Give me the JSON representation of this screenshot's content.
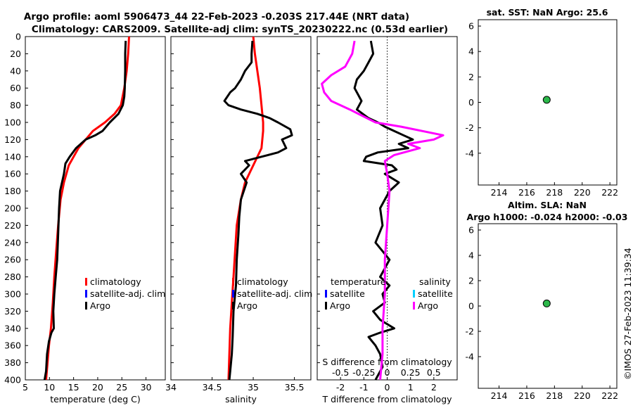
{
  "title": {
    "line1": "Argo profile: aoml 5906473_44 22-Feb-2023 -0.203S 217.44E (NRT data)",
    "line2": "Climatology: CARS2009. Satellite-adj clim: synTS_20230222.nc (0.53d earlier)"
  },
  "watermark": "©IMOS 27-Feb-2023 11:39:34",
  "chart_data": [
    {
      "id": "temperature",
      "type": "line",
      "xlabel": "temperature (deg C)",
      "xlim": [
        5,
        34
      ],
      "xticks": [
        5,
        10,
        15,
        20,
        25,
        30
      ],
      "ylim": [
        0,
        400
      ],
      "yticks": [
        0,
        20,
        40,
        60,
        80,
        100,
        120,
        140,
        160,
        180,
        200,
        220,
        240,
        260,
        280,
        300,
        320,
        340,
        360,
        380,
        400
      ],
      "yreversed": true,
      "legend": {
        "position": "lower-right",
        "entries": [
          "climatology",
          "satellite-adj. clim",
          "Argo"
        ]
      },
      "series": [
        {
          "name": "climatology",
          "color": "#ff0000",
          "x": [
            26.5,
            26.3,
            26.0,
            25.5,
            24.8,
            23.5,
            21.5,
            19.0,
            16.0,
            14.0,
            13.0,
            12.3,
            11.8,
            11.4,
            11.0,
            10.7,
            10.3,
            9.9,
            9.6,
            9.3
          ],
          "depth": [
            0,
            20,
            40,
            60,
            80,
            90,
            100,
            110,
            130,
            150,
            170,
            190,
            220,
            250,
            280,
            310,
            340,
            360,
            380,
            400
          ]
        },
        {
          "name": "Argo",
          "color": "#000000",
          "x": [
            25.8,
            25.7,
            25.7,
            25.6,
            25.5,
            25.2,
            24.3,
            22.5,
            21.0,
            19.5,
            17.5,
            15.5,
            14.2,
            13.3,
            13.0,
            12.2,
            12.0,
            11.8,
            11.6,
            11.3,
            11.0,
            10.8,
            10.9,
            10.4,
            9.9,
            9.5,
            9.3,
            9.0
          ],
          "depth": [
            5,
            20,
            40,
            60,
            70,
            80,
            90,
            100,
            110,
            115,
            120,
            130,
            140,
            148,
            160,
            180,
            200,
            230,
            260,
            280,
            300,
            320,
            340,
            345,
            355,
            370,
            390,
            400
          ]
        }
      ]
    },
    {
      "id": "salinity",
      "type": "line",
      "xlabel": "salinity",
      "xlim": [
        34,
        35.7
      ],
      "xticks": [
        34,
        34.5,
        35,
        35.5
      ],
      "ylim": [
        0,
        400
      ],
      "yreversed": true,
      "legend": {
        "position": "lower-right",
        "entries": [
          "climatology",
          "satellite-adj. clim",
          "Argo"
        ]
      },
      "series": [
        {
          "name": "climatology",
          "color": "#ff0000",
          "x": [
            35.0,
            35.02,
            35.05,
            35.08,
            35.1,
            35.12,
            35.12,
            35.1,
            35.0,
            34.9,
            34.85,
            34.8,
            34.78,
            34.76,
            34.74,
            34.72,
            34.71,
            34.7
          ],
          "depth": [
            0,
            20,
            40,
            60,
            80,
            100,
            110,
            130,
            150,
            170,
            190,
            220,
            250,
            280,
            310,
            340,
            370,
            400
          ]
        },
        {
          "name": "Argo",
          "color": "#000000",
          "x": [
            34.99,
            34.98,
            34.98,
            34.9,
            34.85,
            34.78,
            34.72,
            34.65,
            34.7,
            34.85,
            35.05,
            35.2,
            35.3,
            35.45,
            35.47,
            35.35,
            35.4,
            35.3,
            35.1,
            34.9,
            34.95,
            34.85,
            34.92,
            34.85,
            34.83,
            34.82,
            34.8,
            34.79,
            34.76,
            34.75,
            34.74,
            34.72,
            34.71
          ],
          "depth": [
            5,
            20,
            30,
            40,
            50,
            60,
            65,
            75,
            80,
            85,
            90,
            95,
            100,
            108,
            115,
            120,
            130,
            135,
            140,
            145,
            150,
            160,
            170,
            190,
            210,
            230,
            260,
            290,
            320,
            350,
            370,
            390,
            400
          ]
        }
      ]
    },
    {
      "id": "difference",
      "type": "line",
      "xlabel": "T difference from climatology",
      "xlim": [
        -3,
        3
      ],
      "xticks": [
        -2,
        -1,
        0,
        1,
        2
      ],
      "top_axis_label": "S difference from climatology",
      "top_ticks": [
        -0.5,
        -0.25,
        0,
        0.25,
        0.5
      ],
      "ylim": [
        0,
        400
      ],
      "yreversed": true,
      "reference_line": 0,
      "legend": {
        "position": "lower",
        "temperature_header": "temperature",
        "salinity_header": "salinity",
        "temperature_entries": [
          "satellite",
          "Argo"
        ],
        "salinity_entries": [
          "satellite",
          "Argo"
        ]
      },
      "series": [
        {
          "name": "temperature Argo",
          "color": "#000000",
          "x": [
            -0.7,
            -0.6,
            -0.8,
            -1.0,
            -1.3,
            -1.4,
            -1.2,
            -1.1,
            -1.3,
            -0.8,
            -0.4,
            -0.1,
            0.3,
            0.7,
            1.1,
            0.5,
            0.9,
            -0.4,
            -0.9,
            -1.0,
            0.2,
            0.4,
            -0.1,
            0.5,
            0.1,
            -0.3,
            -0.2,
            -0.5,
            0.1,
            -0.1,
            -0.3,
            0.1,
            -0.2,
            -0.1,
            -0.6,
            -0.3,
            0.3,
            -0.3,
            -0.8,
            -0.5,
            -0.3,
            -0.2,
            -0.5
          ],
          "depth": [
            5,
            20,
            30,
            40,
            50,
            60,
            70,
            75,
            85,
            95,
            100,
            105,
            110,
            115,
            120,
            125,
            130,
            135,
            140,
            145,
            150,
            155,
            160,
            170,
            180,
            200,
            220,
            240,
            260,
            270,
            280,
            290,
            300,
            310,
            320,
            330,
            340,
            345,
            350,
            360,
            370,
            385,
            400
          ]
        },
        {
          "name": "salinity Argo",
          "color": "#ff00ff",
          "x": [
            -1.4,
            -1.5,
            -1.8,
            -2.4,
            -2.8,
            -2.7,
            -2.4,
            -1.6,
            -0.5,
            0.6,
            2.4,
            2.0,
            0.9,
            1.4,
            0.3,
            -0.1,
            0.0,
            0.1,
            0.0,
            -0.1,
            -0.1,
            -0.2,
            -0.2,
            -0.3
          ],
          "depth": [
            5,
            20,
            35,
            45,
            55,
            65,
            75,
            85,
            100,
            105,
            115,
            120,
            125,
            130,
            138,
            145,
            160,
            180,
            220,
            260,
            300,
            340,
            370,
            400
          ]
        }
      ]
    },
    {
      "id": "sst",
      "type": "scatter",
      "title": "sat. SST: NaN Argo: 25.6",
      "xlim": [
        212.5,
        222.5
      ],
      "xticks": [
        214,
        216,
        218,
        220,
        222
      ],
      "ylim": [
        -6.5,
        6.5
      ],
      "yticks": [
        -4,
        -2,
        0,
        2,
        4,
        6
      ],
      "points": [
        {
          "x": 217.44,
          "y": 0.2,
          "color": "#2cb84a"
        }
      ]
    },
    {
      "id": "sla",
      "type": "scatter",
      "title": "Altim. SLA: NaN",
      "title2": "Argo h1000: -0.024 h2000: -0.03",
      "xlim": [
        212.5,
        222.5
      ],
      "xticks": [
        214,
        216,
        218,
        220,
        222
      ],
      "ylim": [
        -6.5,
        6.5
      ],
      "yticks": [
        -4,
        -2,
        0,
        2,
        4,
        6
      ],
      "points": [
        {
          "x": 217.44,
          "y": 0.2,
          "color": "#2cb84a"
        }
      ]
    }
  ]
}
